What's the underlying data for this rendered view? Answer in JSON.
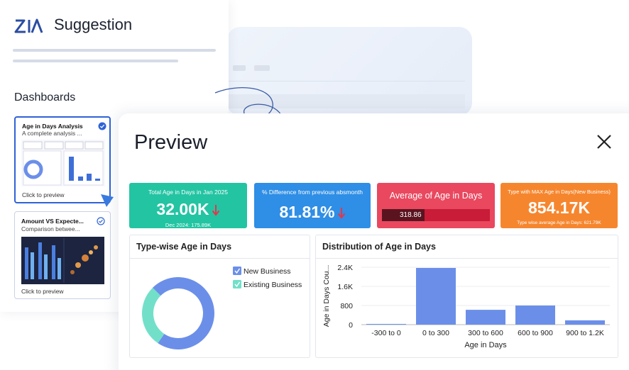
{
  "sidebar": {
    "title": "Suggestion",
    "section": "Dashboards",
    "cards": [
      {
        "title": "Age in Days Analysis",
        "subtitle": "A complete analysis ...",
        "action": "Click to preview"
      },
      {
        "title": "Amount VS Expecte...",
        "subtitle": "Comparison betwee...",
        "action": "Click to preview"
      }
    ]
  },
  "preview": {
    "title": "Preview",
    "kpis": [
      {
        "title": "Total Age in Days in Jan 2025",
        "value": "32.00K",
        "footnote": "Dec 2024: 175.89K"
      },
      {
        "title": "% Difference from previous absmonth",
        "value": "81.81%"
      },
      {
        "title": "Average of Age in Days",
        "value": "318.86"
      },
      {
        "title": "Type with MAX Age in Days(New Business)",
        "value": "854.17K",
        "footnote": "Type wise average Age in Days: 621.79K"
      }
    ]
  },
  "chart_data": [
    {
      "type": "pie",
      "title": "Type-wise Age in Days",
      "donut": true,
      "categories": [
        "New Business",
        "Existing Business"
      ],
      "values": [
        72,
        28
      ],
      "colors": [
        "#6b8fe9",
        "#72e0c9"
      ]
    },
    {
      "type": "bar",
      "title": "Distribution of Age in Days",
      "categories": [
        "-300 to 0",
        "0 to 300",
        "300 to 600",
        "600 to 900",
        "900 to 1.2K"
      ],
      "values": [
        30,
        2370,
        620,
        800,
        180
      ],
      "color": "#6b8fe9",
      "x_label": "Age in Days",
      "y_label": "Age in Days Cou...",
      "ylim": [
        0,
        2400
      ],
      "yticks": [
        0,
        800,
        {
          "value": 1600,
          "label": "1.6K"
        },
        {
          "value": 2400,
          "label": "2.4K"
        }
      ],
      "grid": true
    }
  ]
}
